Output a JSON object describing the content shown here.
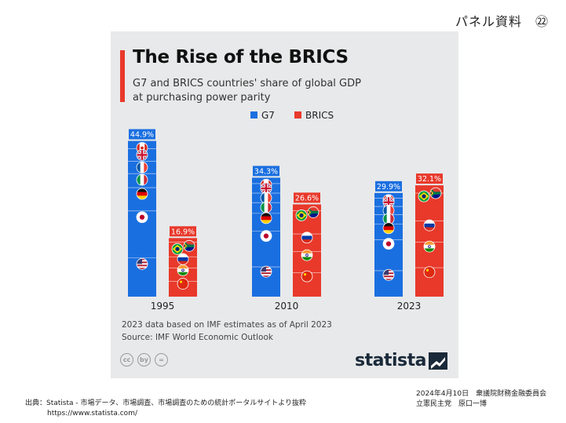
{
  "page": {
    "slide_label": "パネル資料　㉒"
  },
  "chart_data": {
    "type": "bar",
    "title": "The Rise of the BRICS",
    "subtitle_line1": "G7 and BRICS countries' share of global GDP",
    "subtitle_line2": "at purchasing power parity",
    "categories": [
      "1995",
      "2010",
      "2023"
    ],
    "series": [
      {
        "name": "G7",
        "color": "#1a6fe0",
        "values": [
          44.9,
          34.3,
          29.9
        ]
      },
      {
        "name": "BRICS",
        "color": "#e8392b",
        "values": [
          16.9,
          26.6,
          32.1
        ]
      }
    ],
    "value_labels": {
      "G7": [
        "44.9%",
        "34.3%",
        "29.9%"
      ],
      "BRICS": [
        "16.9%",
        "26.6%",
        "32.1%"
      ]
    },
    "ylim": [
      0,
      50
    ],
    "legend_position": "top-center",
    "note_line1": "2023 data based on IMF estimates as of April 2023",
    "note_line2": "Source: IMF World Economic Outlook",
    "g7_flags": [
      "flag-canada",
      "flag-uk",
      "flag-france",
      "flag-italy",
      "flag-germany",
      "flag-japan",
      "flag-usa"
    ],
    "brics_flags": [
      "flag-brazil",
      "flag-south-africa",
      "flag-russia",
      "flag-india",
      "flag-china"
    ]
  },
  "branding": {
    "logo_text": "statista",
    "license_icons": [
      "cc",
      "by",
      "="
    ]
  },
  "footer": {
    "source_line": "出典：Statista - 市場データ、市場調査、市場調査のための統計ポータルサイトより抜粋",
    "source_url": "https://www.statista.com/",
    "date_line": "2024年4月10日　衆議院財務金融委員会",
    "author_line": "立憲民主党　原口一博"
  }
}
